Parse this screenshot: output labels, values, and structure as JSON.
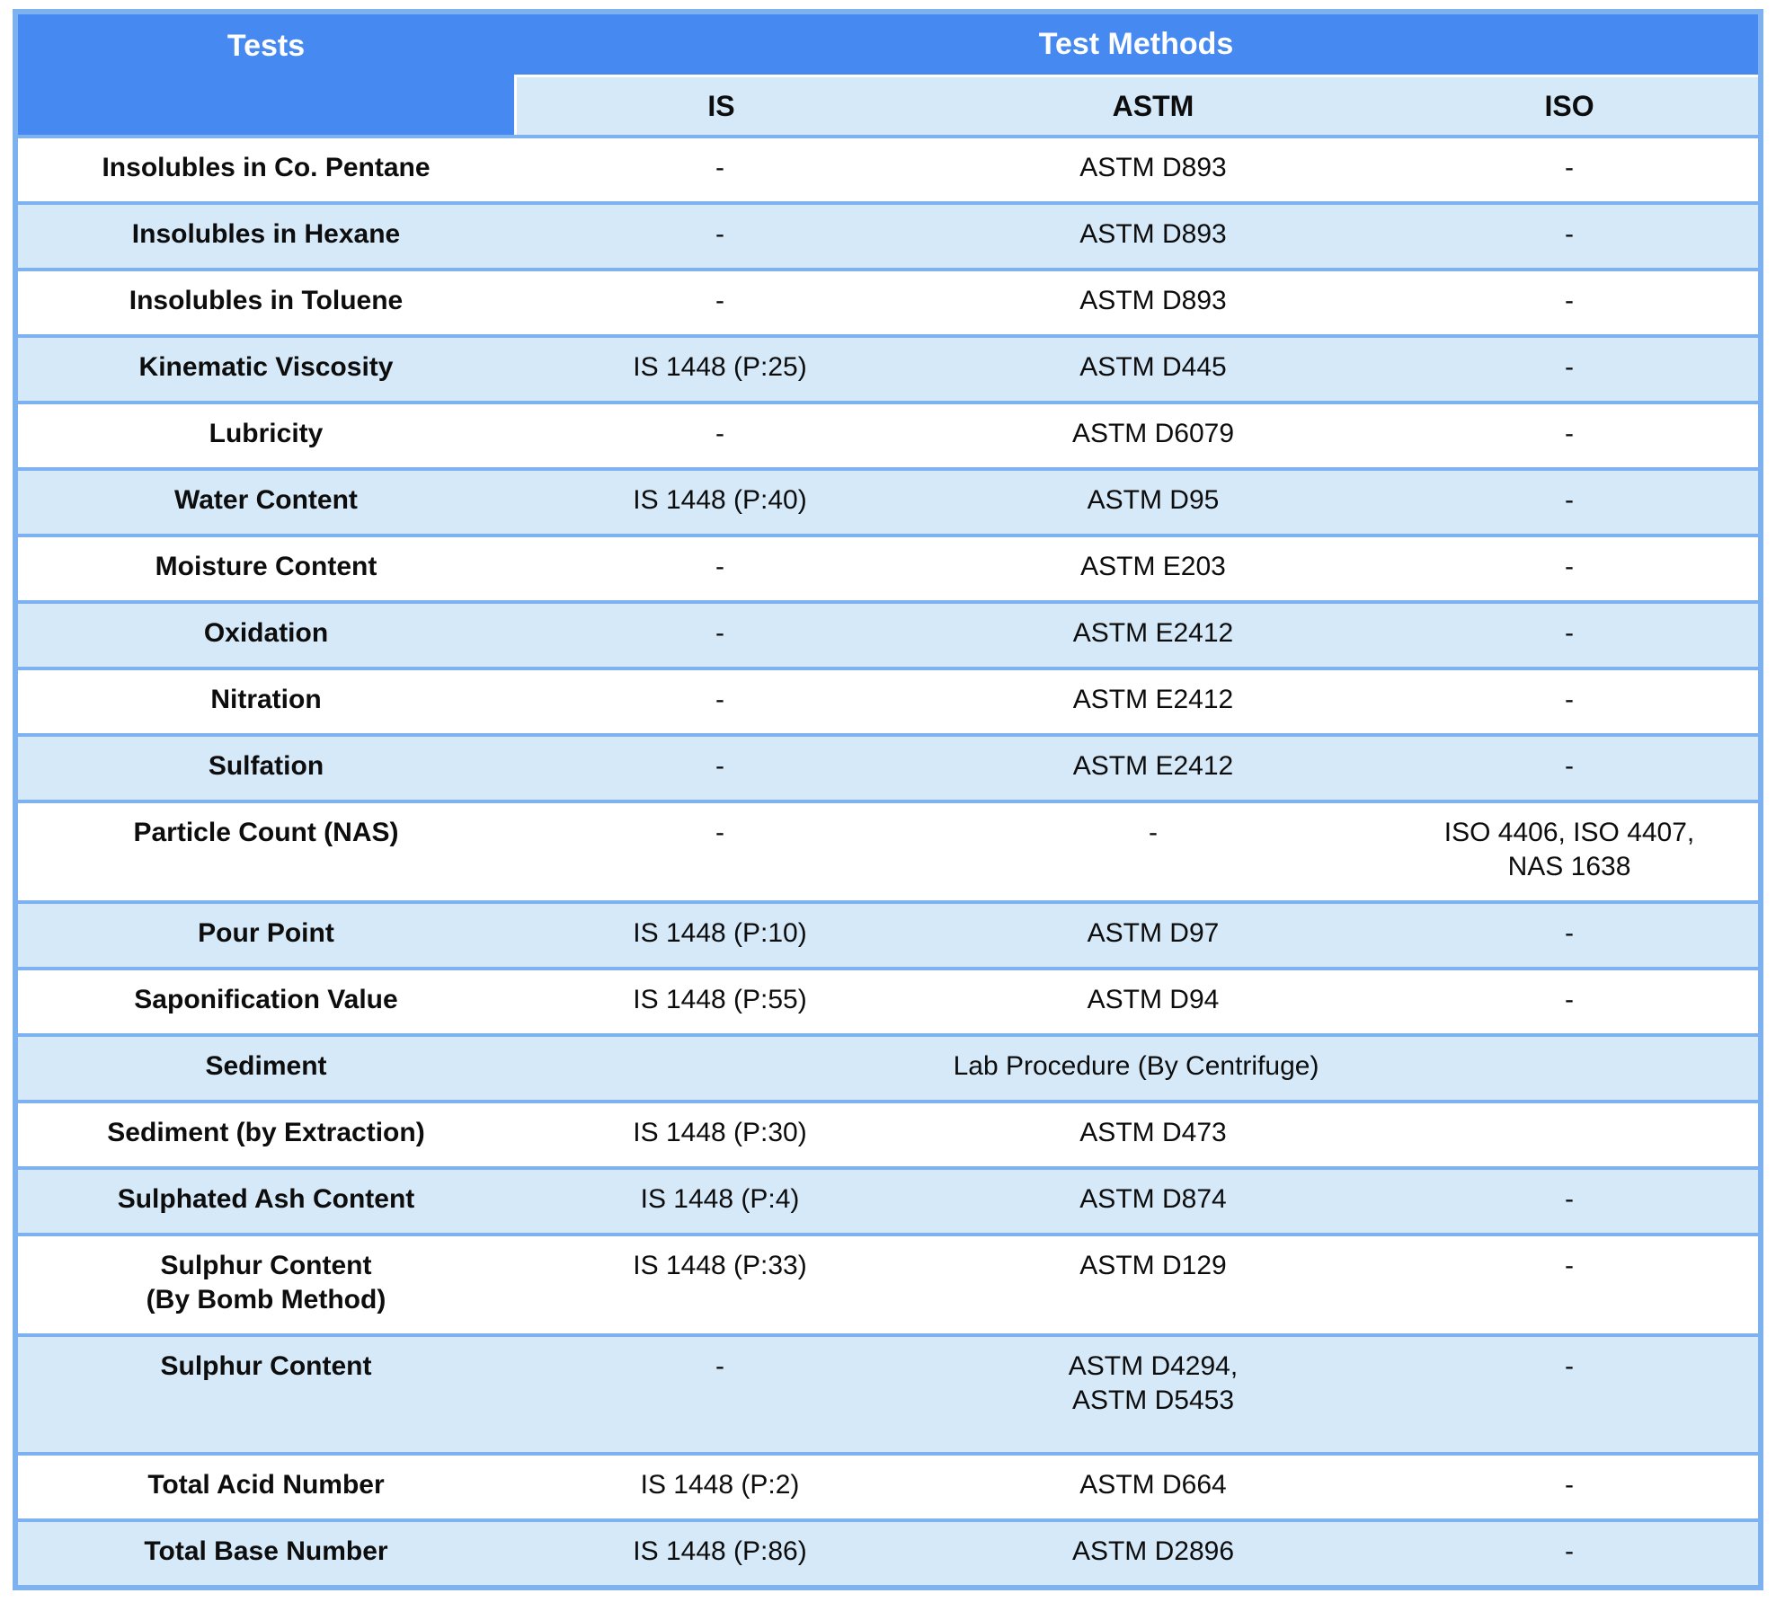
{
  "table": {
    "title_col": "Tests",
    "methods_group": "Test Methods",
    "method_columns": {
      "is": "IS",
      "astm": "ASTM",
      "iso": "ISO"
    },
    "colors": {
      "header_blue": "#4589f1",
      "border_blue": "#7eb1f0",
      "light_row_blue": "#d6e9f9",
      "white_row": "#ffffff",
      "header_text": "#ffffff",
      "body_text": "#0d0d0d"
    },
    "rows": [
      {
        "test": "Insolubles in Co. Pentane",
        "is": "-",
        "astm": "ASTM D893",
        "iso": "-"
      },
      {
        "test": "Insolubles in Hexane",
        "is": "-",
        "astm": "ASTM D893",
        "iso": "-"
      },
      {
        "test": "Insolubles in Toluene",
        "is": "-",
        "astm": "ASTM D893",
        "iso": "-"
      },
      {
        "test": "Kinematic Viscosity",
        "is": "IS 1448 (P:25)",
        "astm": "ASTM D445",
        "iso": "-"
      },
      {
        "test": "Lubricity",
        "is": "-",
        "astm": "ASTM D6079",
        "iso": "-"
      },
      {
        "test": "Water Content",
        "is": "IS 1448 (P:40)",
        "astm": "ASTM D95",
        "iso": "-"
      },
      {
        "test": "Moisture Content",
        "is": "-",
        "astm": "ASTM E203",
        "iso": "-"
      },
      {
        "test": "Oxidation",
        "is": "-",
        "astm": "ASTM E2412",
        "iso": "-"
      },
      {
        "test": "Nitration",
        "is": "-",
        "astm": "ASTM E2412",
        "iso": "-"
      },
      {
        "test": "Sulfation",
        "is": "-",
        "astm": "ASTM E2412",
        "iso": "-"
      },
      {
        "test": "Particle Count (NAS)",
        "is": "-",
        "astm": "-",
        "iso": "ISO 4406, ISO 4407,\nNAS 1638"
      },
      {
        "test": "Pour Point",
        "is": "IS 1448 (P:10)",
        "astm": "ASTM D97",
        "iso": "-"
      },
      {
        "test": "Saponification Value",
        "is": "IS 1448 (P:55)",
        "astm": "ASTM D94",
        "iso": "-"
      },
      {
        "test": "Sediment",
        "merged": "Lab Procedure (By Centrifuge)"
      },
      {
        "test": "Sediment (by Extraction)",
        "is": "IS 1448 (P:30)",
        "astm": "ASTM D473",
        "iso": ""
      },
      {
        "test": "Sulphated Ash Content",
        "is": "IS 1448 (P:4)",
        "astm": "ASTM D874",
        "iso": "-"
      },
      {
        "test": "Sulphur Content\n(By Bomb Method)",
        "is": "IS 1448 (P:33)",
        "astm": "ASTM D129",
        "iso": "-"
      },
      {
        "test": "Sulphur Content",
        "is": "-",
        "astm": "ASTM D4294,\nASTM D5453",
        "iso": "-"
      },
      {
        "test": "Total Acid Number",
        "is": "IS 1448 (P:2)",
        "astm": "ASTM D664",
        "iso": "-"
      },
      {
        "test": "Total Base Number",
        "is": "IS 1448 (P:86)",
        "astm": "ASTM D2896",
        "iso": "-"
      }
    ]
  }
}
